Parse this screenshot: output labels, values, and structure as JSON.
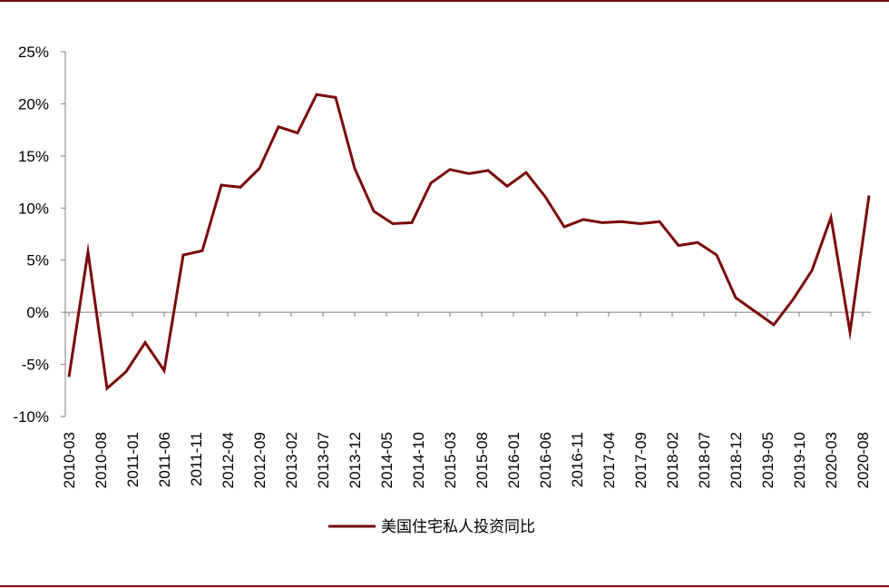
{
  "colors": {
    "series": "#7a0a0a",
    "rule": "#7a0a0a",
    "axis": "#7f7f7f"
  },
  "chart_data": {
    "type": "line",
    "title": "",
    "xlabel": "",
    "ylabel": "",
    "ylim": [
      -10,
      25
    ],
    "y_ticks": [
      25,
      20,
      15,
      10,
      5,
      0,
      -5,
      -10
    ],
    "y_tick_labels": [
      "25%",
      "20%",
      "15%",
      "10%",
      "5%",
      "0%",
      "-5%",
      "-10%"
    ],
    "x_tick_labels": [
      "2010-03",
      "2010-08",
      "2011-01",
      "2011-06",
      "2011-11",
      "2012-04",
      "2012-09",
      "2013-02",
      "2013-07",
      "2013-12",
      "2014-05",
      "2014-10",
      "2015-03",
      "2015-08",
      "2016-01",
      "2016-06",
      "2016-11",
      "2017-04",
      "2017-09",
      "2018-02",
      "2018-07",
      "2018-12",
      "2019-05",
      "2019-10",
      "2020-03",
      "2020-08"
    ],
    "legend_position": "bottom-center",
    "grid": false,
    "x": [
      "2010-03",
      "2010-06",
      "2010-09",
      "2010-12",
      "2011-03",
      "2011-06",
      "2011-09",
      "2011-12",
      "2012-03",
      "2012-06",
      "2012-09",
      "2012-12",
      "2013-03",
      "2013-06",
      "2013-09",
      "2013-12",
      "2014-03",
      "2014-06",
      "2014-09",
      "2014-12",
      "2015-03",
      "2015-06",
      "2015-09",
      "2015-12",
      "2016-03",
      "2016-06",
      "2016-09",
      "2016-12",
      "2017-03",
      "2017-06",
      "2017-09",
      "2017-12",
      "2018-03",
      "2018-06",
      "2018-09",
      "2018-12",
      "2019-03",
      "2019-06",
      "2019-09",
      "2019-12",
      "2020-03",
      "2020-06",
      "2020-09"
    ],
    "series": [
      {
        "name": "美国住宅私人投资同比",
        "values": [
          -6.2,
          5.8,
          -7.3,
          -5.7,
          -2.9,
          -5.6,
          5.5,
          5.9,
          12.2,
          12.0,
          13.8,
          17.8,
          17.2,
          20.9,
          20.6,
          13.8,
          9.7,
          8.5,
          8.6,
          12.4,
          13.7,
          13.3,
          13.6,
          12.1,
          13.4,
          11.1,
          8.2,
          8.9,
          8.6,
          8.7,
          8.5,
          8.7,
          6.4,
          6.7,
          5.5,
          1.4,
          0.1,
          -1.2,
          1.2,
          4.0,
          9.1,
          -1.9,
          11.2
        ]
      }
    ]
  }
}
